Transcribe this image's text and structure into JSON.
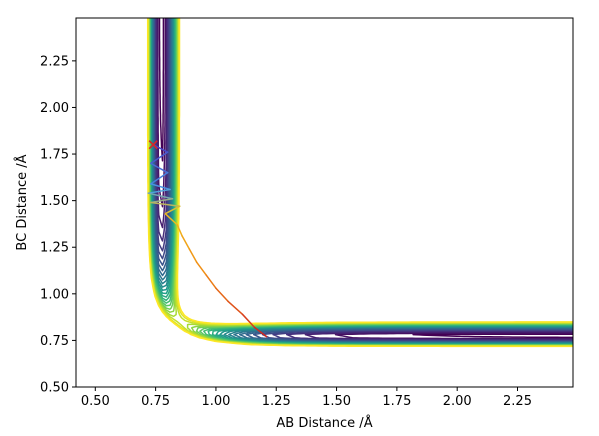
{
  "chart_data": {
    "type": "contour",
    "xlabel": "AB Distance /Å",
    "ylabel": "BC Distance /Å",
    "xlim": [
      0.42,
      2.48
    ],
    "ylim": [
      0.5,
      2.48
    ],
    "x_ticks": [
      0.5,
      0.75,
      1.0,
      1.25,
      1.5,
      1.75,
      2.0,
      2.25
    ],
    "x_tick_labels": [
      "0.50",
      "0.75",
      "1.00",
      "1.25",
      "1.50",
      "1.75",
      "2.00",
      "2.25"
    ],
    "y_ticks": [
      0.5,
      0.75,
      1.0,
      1.25,
      1.5,
      1.75,
      2.0,
      2.25
    ],
    "y_tick_labels": [
      "0.50",
      "0.75",
      "1.00",
      "1.25",
      "1.50",
      "1.75",
      "2.00",
      "2.25"
    ],
    "grid": false,
    "colormap": "viridis",
    "contour_levels": 24,
    "trajectory": [
      {
        "x": 0.74,
        "y": 1.8
      },
      {
        "x": 0.8,
        "y": 1.76
      },
      {
        "x": 0.73,
        "y": 1.7
      },
      {
        "x": 0.8,
        "y": 1.65
      },
      {
        "x": 0.73,
        "y": 1.59
      },
      {
        "x": 0.81,
        "y": 1.56
      },
      {
        "x": 0.72,
        "y": 1.54
      },
      {
        "x": 0.82,
        "y": 1.51
      },
      {
        "x": 0.73,
        "y": 1.49
      },
      {
        "x": 0.85,
        "y": 1.47
      },
      {
        "x": 0.79,
        "y": 1.43
      },
      {
        "x": 0.84,
        "y": 1.37
      },
      {
        "x": 0.86,
        "y": 1.31
      },
      {
        "x": 0.89,
        "y": 1.24
      },
      {
        "x": 0.92,
        "y": 1.17
      },
      {
        "x": 0.96,
        "y": 1.1
      },
      {
        "x": 1.0,
        "y": 1.03
      },
      {
        "x": 1.05,
        "y": 0.96
      },
      {
        "x": 1.11,
        "y": 0.89
      },
      {
        "x": 1.16,
        "y": 0.82
      },
      {
        "x": 1.21,
        "y": 0.77
      }
    ],
    "start_marker": {
      "x": 0.74,
      "y": 1.8,
      "symbol": "x",
      "color": "#d62728"
    }
  }
}
